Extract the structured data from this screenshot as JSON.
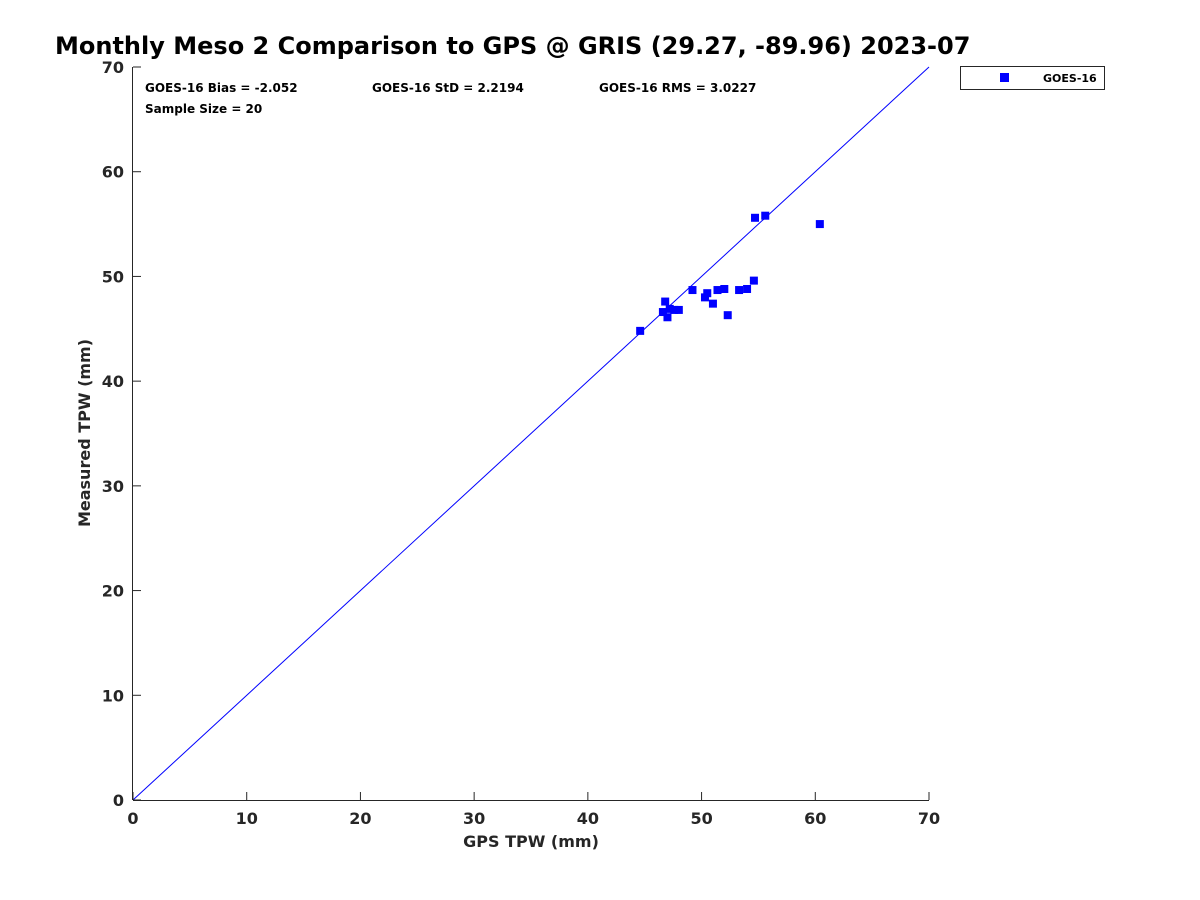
{
  "chart_data": {
    "type": "scatter",
    "title": "Monthly Meso 2 Comparison to GPS @ GRIS (29.27, -89.96) 2023-07",
    "xlabel": "GPS TPW (mm)",
    "ylabel": "Measured TPW (mm)",
    "xlim": [
      0,
      70
    ],
    "ylim": [
      0,
      70
    ],
    "xticks": [
      0,
      10,
      20,
      30,
      40,
      50,
      60,
      70
    ],
    "yticks": [
      0,
      10,
      20,
      30,
      40,
      50,
      60,
      70
    ],
    "grid": false,
    "legend_position": "outside top-right",
    "reference_line": {
      "x": [
        0,
        70
      ],
      "y": [
        0,
        70
      ],
      "color": "#0000ff"
    },
    "annotations": {
      "bias": "GOES-16 Bias = -2.052",
      "std": "GOES-16 StD = 2.2194",
      "rms": "GOES-16 RMS = 3.0227",
      "sample_size": "Sample Size = 20"
    },
    "series": [
      {
        "name": "GOES-16",
        "color": "#0000ff",
        "marker": "square",
        "points": [
          {
            "x": 44.6,
            "y": 44.8
          },
          {
            "x": 46.6,
            "y": 46.6
          },
          {
            "x": 46.8,
            "y": 47.6
          },
          {
            "x": 47.0,
            "y": 46.1
          },
          {
            "x": 47.2,
            "y": 46.9
          },
          {
            "x": 47.6,
            "y": 46.8
          },
          {
            "x": 48.0,
            "y": 46.8
          },
          {
            "x": 49.2,
            "y": 48.7
          },
          {
            "x": 50.3,
            "y": 48.0
          },
          {
            "x": 50.5,
            "y": 48.4
          },
          {
            "x": 51.0,
            "y": 47.4
          },
          {
            "x": 51.4,
            "y": 48.7
          },
          {
            "x": 52.0,
            "y": 48.8
          },
          {
            "x": 52.3,
            "y": 46.3
          },
          {
            "x": 53.3,
            "y": 48.7
          },
          {
            "x": 54.0,
            "y": 48.8
          },
          {
            "x": 54.6,
            "y": 49.6
          },
          {
            "x": 54.7,
            "y": 55.6
          },
          {
            "x": 55.6,
            "y": 55.8
          },
          {
            "x": 60.4,
            "y": 55.0
          }
        ]
      }
    ]
  }
}
